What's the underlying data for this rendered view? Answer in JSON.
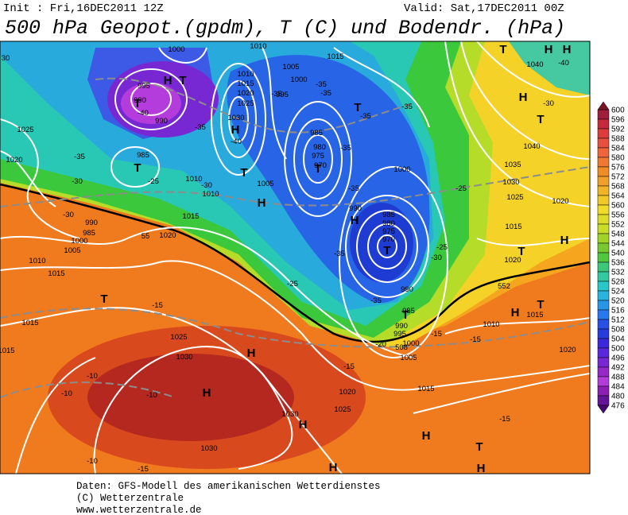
{
  "header": {
    "init": "Init : Fri,16DEC2011 12Z",
    "valid": "Valid: Sat,17DEC2011 00Z",
    "title": "500 hPa Geopot.(gpdm), T (C) und Bodendr. (hPa)"
  },
  "footer": {
    "lines": [
      "Daten: GFS-Modell des amerikanischen Wetterdienstes",
      "(C) Wetterzentrale",
      "www.wetterzentrale.de"
    ]
  },
  "colorbar": {
    "labels": [
      600,
      596,
      592,
      588,
      584,
      580,
      576,
      572,
      568,
      564,
      560,
      556,
      552,
      548,
      544,
      540,
      536,
      532,
      528,
      524,
      520,
      516,
      512,
      508,
      504,
      500,
      496,
      492,
      488,
      484,
      480,
      476
    ]
  },
  "map": {
    "contour_labels": [
      "30",
      "1000",
      "1010",
      "1005",
      "1015",
      "1000",
      "-35",
      "995",
      "-35",
      "1010",
      "1015",
      "1020",
      "1025",
      "1030",
      "-35",
      "995",
      "990",
      "-40",
      "990",
      "1025",
      "-35",
      "-40",
      "-35",
      "-35",
      "985",
      "980",
      "975",
      "970",
      "-35",
      "985",
      "1020",
      "-35",
      "-25",
      "-30",
      "-30",
      "1010",
      "1010",
      "1005",
      "1000",
      "-25",
      "1030",
      "1035",
      "1040",
      "1040",
      "-40",
      "-30",
      "1025",
      "1020",
      "-30",
      "990",
      "985",
      "1000",
      "1005",
      "1010",
      "1015",
      "1015",
      "1020",
      "-35",
      "990",
      "985",
      "980",
      "975",
      "970",
      "-25",
      "-30",
      "-35",
      "1015",
      "1020",
      "990",
      "-35",
      "-25",
      "985",
      "990",
      "995",
      "1000",
      "1005",
      "-15",
      "1015",
      "1025",
      "1030",
      "-15",
      "-20",
      "-15",
      "1010",
      "1015",
      "-15",
      "-10",
      "-10",
      "-10",
      "1020",
      "1025",
      "1030",
      "1015",
      "-15",
      "1030",
      "-10",
      "-15",
      "1020",
      "1015",
      "55",
      "552",
      "508"
    ],
    "pressure_centers": [
      "H",
      "T",
      "T",
      "T",
      "H",
      "T",
      "H",
      "T",
      "T",
      "H",
      "T",
      "T",
      "H",
      "H",
      "H",
      "H",
      "H",
      "T",
      "H",
      "T",
      "H",
      "T",
      "H",
      "T",
      "T",
      "H",
      "H",
      "T",
      "H"
    ]
  }
}
